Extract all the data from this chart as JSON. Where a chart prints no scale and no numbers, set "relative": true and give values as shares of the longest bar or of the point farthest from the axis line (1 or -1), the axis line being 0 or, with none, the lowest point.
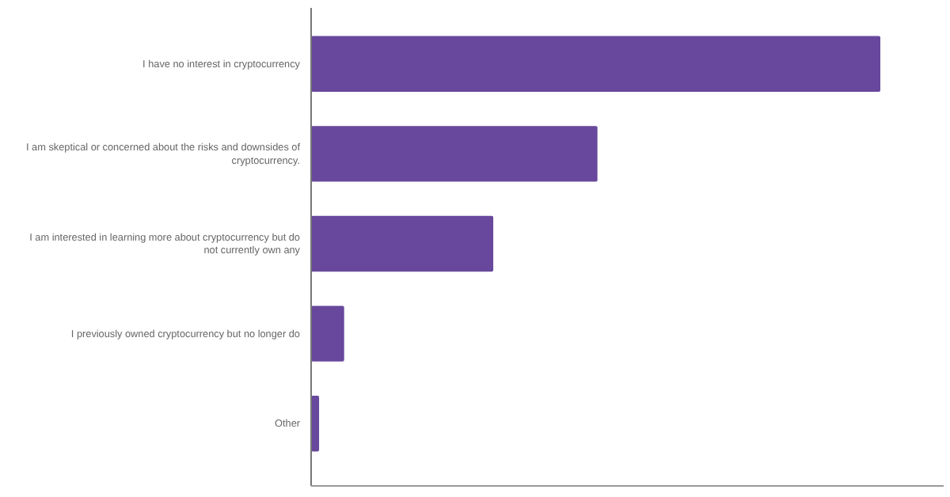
{
  "chart_data": {
    "type": "bar",
    "orientation": "horizontal",
    "relative": true,
    "categories": [
      "I have no interest in cryptocurrency",
      "I am skeptical or concerned about the risks and downsides of cryptocurrency.",
      "I am interested in learning more about cryptocurrency but do not currently own any",
      "I previously owned cryptocurrency but no longer do",
      "Other"
    ],
    "values": [
      1,
      0.503,
      0.32,
      0.058,
      0.014
    ],
    "color": "#68489c"
  }
}
